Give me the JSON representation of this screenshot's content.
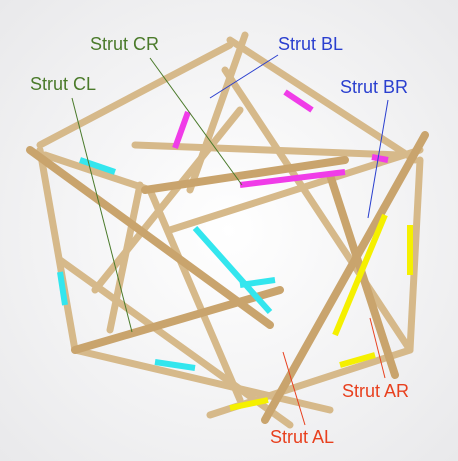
{
  "labels": [
    {
      "text": "Strut CR"
    },
    {
      "text": "Strut BL"
    },
    {
      "text": "Strut CL"
    },
    {
      "text": "Strut BR"
    },
    {
      "text": "Strut AR"
    },
    {
      "text": "Strut AL"
    }
  ]
}
